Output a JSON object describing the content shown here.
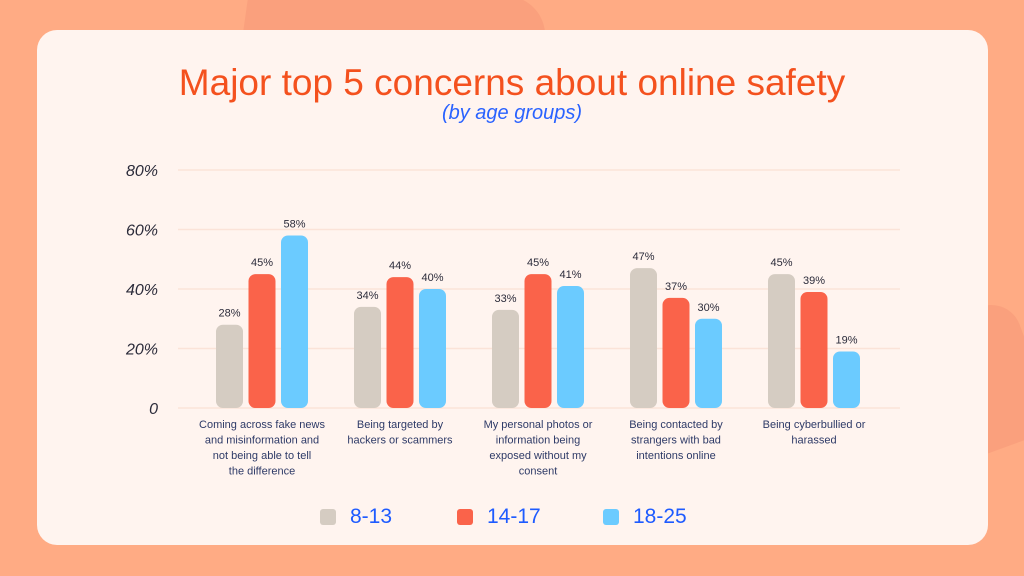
{
  "title": "Major top 5 concerns about online safety",
  "subtitle": "(by age groups)",
  "colors": {
    "8-13": "#D5CCC2",
    "14-17": "#FA634A",
    "18-25": "#6BCBFF",
    "title": "#F4511E",
    "subtitle": "#2962FF"
  },
  "chart_data": {
    "type": "bar",
    "title": "Major top 5 concerns about online safety",
    "subtitle": "(by age groups)",
    "categories": [
      "Coming across fake news and misinformation and not being able to tell the difference",
      "Being targeted by hackers or scammers",
      "My personal photos or information being exposed without my consent",
      "Being contacted by strangers with bad intentions online",
      "Being cyberbullied or harassed"
    ],
    "series": [
      {
        "name": "8-13",
        "values": [
          28,
          34,
          33,
          47,
          45
        ],
        "labels": [
          "28%",
          "34%",
          "33%",
          "47%",
          "45%"
        ]
      },
      {
        "name": "14-17",
        "values": [
          45,
          44,
          45,
          37,
          39
        ],
        "labels": [
          "45%",
          "44%",
          "45%",
          "37%",
          "39%"
        ]
      },
      {
        "name": "18-25",
        "values": [
          58,
          40,
          41,
          30,
          19
        ],
        "labels": [
          "58%",
          "40%",
          "41%",
          "30%",
          "19%"
        ]
      }
    ],
    "yticks": [
      "0",
      "20%",
      "40%",
      "60%",
      "80%"
    ],
    "ylim": [
      0,
      80
    ],
    "grid": true,
    "legend": "bottom"
  }
}
